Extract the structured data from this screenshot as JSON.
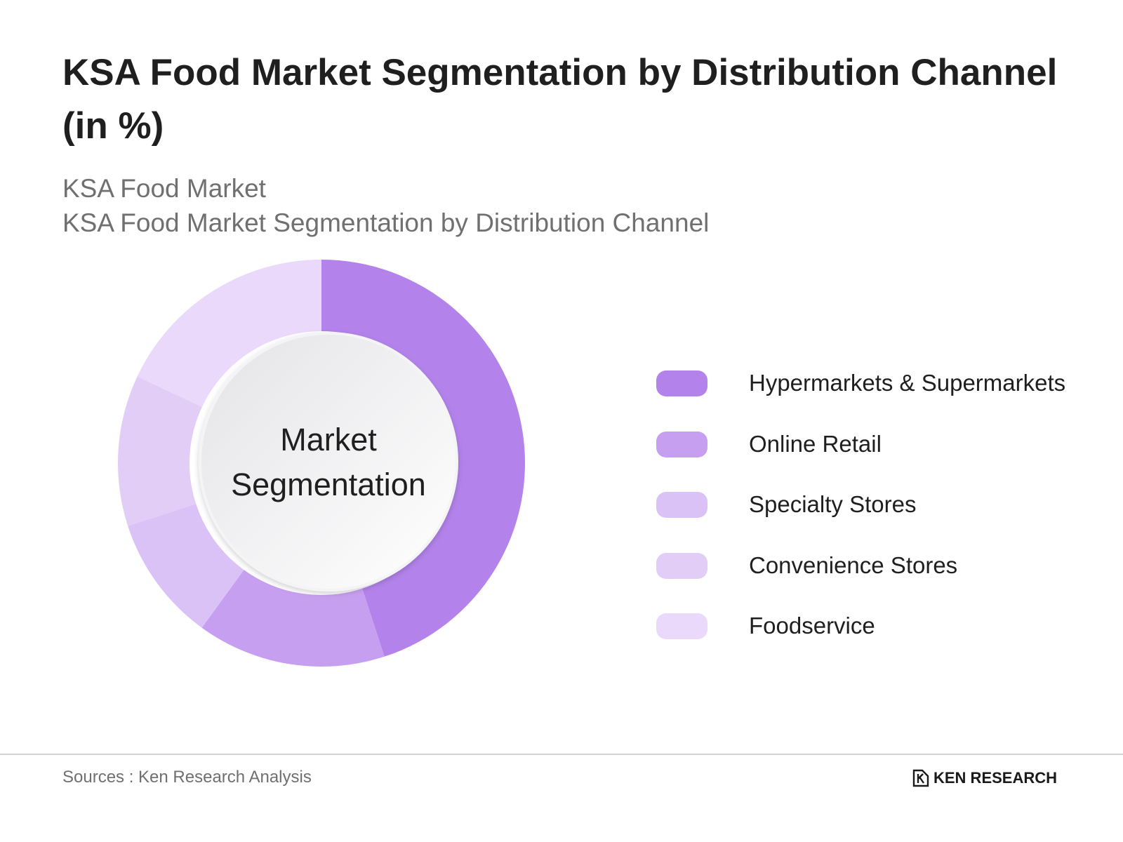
{
  "header": {
    "title": "KSA Food Market Segmentation by Distribution Channel (in %)",
    "subtitle_line1": "KSA Food Market",
    "subtitle_line2": "KSA Food Market Segmentation by Distribution Channel"
  },
  "chart_data": {
    "type": "pie",
    "variant": "donut",
    "title": "KSA Food Market Segmentation by Distribution Channel (in %)",
    "center_label": [
      "Market",
      "Segmentation"
    ],
    "categories": [
      "Hypermarkets & Supermarkets",
      "Online Retail",
      "Specialty Stores",
      "Convenience Stores",
      "Foodservice"
    ],
    "values": [
      45,
      15,
      10,
      12,
      18
    ],
    "colors": [
      "#b383eb",
      "#c79ff0",
      "#dbc2f6",
      "#e2cdf7",
      "#ead9fa"
    ],
    "legend_position": "right"
  },
  "footer": {
    "source": "Sources : Ken Research Analysis",
    "brand": "KEN RESEARCH"
  }
}
